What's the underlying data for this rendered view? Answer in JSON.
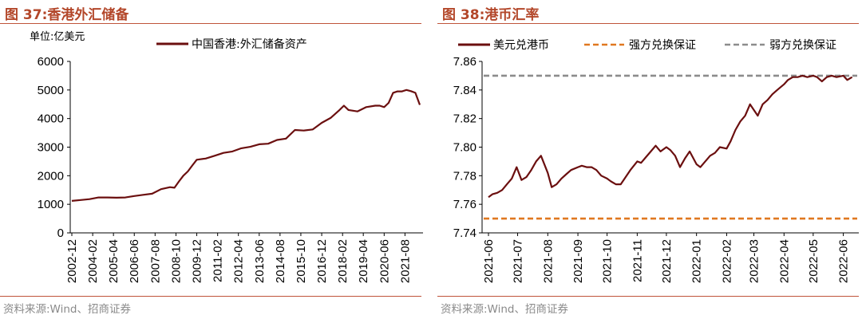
{
  "left": {
    "figure_title": "图 37:香港外汇储备",
    "source": "资料来源:Wind、招商证券"
  },
  "right": {
    "figure_title": "图 38:港币汇率",
    "source": "资料来源:Wind、招商证券"
  },
  "chart_data": [
    {
      "type": "line",
      "unit_label": "单位:亿美元",
      "ylim": [
        0,
        6000
      ],
      "yticks": [
        0,
        1000,
        2000,
        3000,
        4000,
        5000,
        6000
      ],
      "xlabels": [
        "2002-12",
        "2004-02",
        "2005-04",
        "2006-06",
        "2007-08",
        "2008-10",
        "2009-12",
        "2011-02",
        "2012-04",
        "2013-06",
        "2014-08",
        "2015-10",
        "2016-12",
        "2018-02",
        "2019-04",
        "2020-06",
        "2021-08"
      ],
      "colors": {
        "line": "#6b0f0f"
      },
      "series": [
        {
          "name": "中国香港:外汇储备资产",
          "x": [
            "2002-12",
            "2003-06",
            "2003-12",
            "2004-06",
            "2004-12",
            "2005-06",
            "2005-12",
            "2006-06",
            "2006-12",
            "2007-06",
            "2007-12",
            "2008-06",
            "2008-09",
            "2008-12",
            "2009-03",
            "2009-06",
            "2009-09",
            "2009-12",
            "2010-06",
            "2010-12",
            "2011-06",
            "2011-12",
            "2012-06",
            "2012-12",
            "2013-06",
            "2013-12",
            "2014-06",
            "2014-12",
            "2015-06",
            "2015-12",
            "2016-06",
            "2016-12",
            "2017-06",
            "2017-12",
            "2018-03",
            "2018-06",
            "2018-12",
            "2019-06",
            "2019-12",
            "2020-03",
            "2020-06",
            "2020-09",
            "2020-12",
            "2021-03",
            "2021-06",
            "2021-09",
            "2021-12",
            "2022-03",
            "2022-06"
          ],
          "values": [
            1120,
            1150,
            1180,
            1240,
            1240,
            1230,
            1240,
            1290,
            1330,
            1370,
            1530,
            1600,
            1580,
            1800,
            2000,
            2150,
            2360,
            2560,
            2600,
            2700,
            2800,
            2850,
            2960,
            3010,
            3100,
            3120,
            3250,
            3300,
            3600,
            3580,
            3620,
            3850,
            4020,
            4300,
            4450,
            4300,
            4250,
            4400,
            4450,
            4450,
            4400,
            4550,
            4900,
            4950,
            4950,
            5000,
            4960,
            4900,
            4480
          ]
        }
      ]
    },
    {
      "type": "line",
      "ylim": [
        7.74,
        7.86
      ],
      "yticks": [
        7.74,
        7.76,
        7.78,
        7.8,
        7.82,
        7.84,
        7.86
      ],
      "xlabels": [
        "2021-06",
        "2021-07",
        "2021-08",
        "2021-09",
        "2021-10",
        "2021-11",
        "2021-12",
        "2022-01",
        "2022-02",
        "2022-03",
        "2022-04",
        "2022-05",
        "2022-06"
      ],
      "colors": {
        "line": "#6b0f0f",
        "strong": "#e07820",
        "weak": "#8c8c8c"
      },
      "series": [
        {
          "name": "美元兑港币",
          "x": [
            "2021-06-01",
            "2021-06-05",
            "2021-06-10",
            "2021-06-15",
            "2021-06-20",
            "2021-06-25",
            "2021-06-30",
            "2021-07-05",
            "2021-07-10",
            "2021-07-15",
            "2021-07-20",
            "2021-07-25",
            "2021-08-01",
            "2021-08-05",
            "2021-08-10",
            "2021-08-15",
            "2021-08-20",
            "2021-08-25",
            "2021-09-01",
            "2021-09-05",
            "2021-09-10",
            "2021-09-15",
            "2021-09-20",
            "2021-09-25",
            "2021-10-01",
            "2021-10-05",
            "2021-10-10",
            "2021-10-15",
            "2021-10-20",
            "2021-10-25",
            "2021-11-01",
            "2021-11-05",
            "2021-11-10",
            "2021-11-15",
            "2021-11-20",
            "2021-11-25",
            "2021-12-01",
            "2021-12-05",
            "2021-12-10",
            "2021-12-15",
            "2021-12-20",
            "2021-12-25",
            "2022-01-01",
            "2022-01-05",
            "2022-01-10",
            "2022-01-15",
            "2022-01-20",
            "2022-01-25",
            "2022-02-01",
            "2022-02-05",
            "2022-02-10",
            "2022-02-15",
            "2022-02-20",
            "2022-02-25",
            "2022-03-01",
            "2022-03-05",
            "2022-03-10",
            "2022-03-15",
            "2022-03-20",
            "2022-03-25",
            "2022-04-01",
            "2022-04-05",
            "2022-04-10",
            "2022-04-15",
            "2022-04-20",
            "2022-04-25",
            "2022-05-01",
            "2022-05-05",
            "2022-05-10",
            "2022-05-15",
            "2022-05-20",
            "2022-05-25",
            "2022-06-01",
            "2022-06-05",
            "2022-06-10"
          ],
          "values": [
            7.765,
            7.767,
            7.768,
            7.77,
            7.774,
            7.778,
            7.786,
            7.777,
            7.779,
            7.784,
            7.79,
            7.794,
            7.782,
            7.772,
            7.774,
            7.778,
            7.781,
            7.784,
            7.786,
            7.787,
            7.786,
            7.786,
            7.784,
            7.78,
            7.778,
            7.776,
            7.774,
            7.774,
            7.779,
            7.784,
            7.79,
            7.789,
            7.793,
            7.797,
            7.801,
            7.797,
            7.8,
            7.798,
            7.794,
            7.786,
            7.792,
            7.797,
            7.788,
            7.786,
            7.79,
            7.794,
            7.796,
            7.8,
            7.799,
            7.804,
            7.812,
            7.818,
            7.822,
            7.83,
            7.826,
            7.822,
            7.83,
            7.833,
            7.837,
            7.84,
            7.844,
            7.847,
            7.849,
            7.849,
            7.85,
            7.849,
            7.85,
            7.849,
            7.846,
            7.849,
            7.85,
            7.849,
            7.85,
            7.847,
            7.849
          ]
        },
        {
          "name": "强方兑换保证",
          "x": [
            "2021-06-01",
            "2022-06-30"
          ],
          "values": [
            7.75,
            7.75
          ]
        },
        {
          "name": "弱方兑换保证",
          "x": [
            "2021-06-01",
            "2022-06-30"
          ],
          "values": [
            7.85,
            7.85
          ]
        }
      ]
    }
  ]
}
